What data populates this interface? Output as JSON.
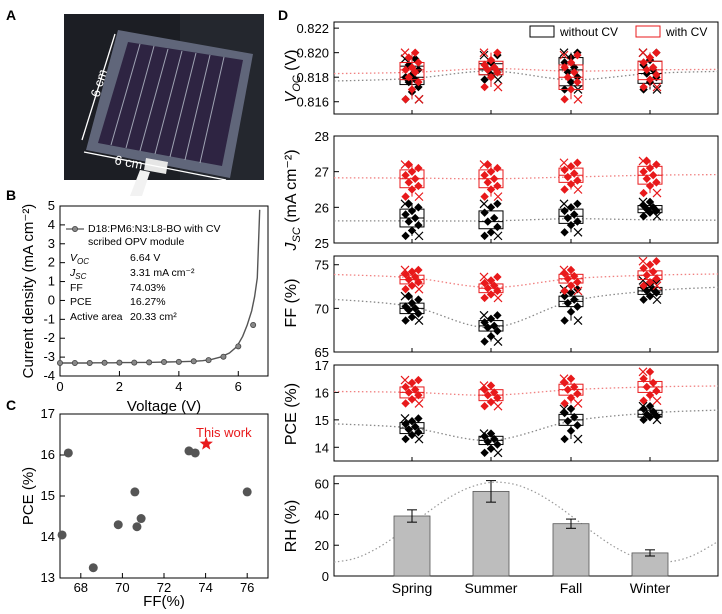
{
  "panels": {
    "A": {
      "label": "A",
      "dims": [
        "6 cm",
        "6 cm"
      ],
      "icon": "solar-module-photo"
    },
    "B": {
      "label": "B",
      "legend": "D18:PM6:N3:L8-BO with CV scribed OPV module",
      "legend_lines": [
        "D18:PM6:N3:L8-BO with CV",
        "scribed OPV module"
      ],
      "params": [
        {
          "label_main": "V",
          "label_sub": "OC",
          "label_rest": "",
          "value": "6.64 V"
        },
        {
          "label_main": "J",
          "label_sub": "SC",
          "label_rest": "",
          "value": "3.31 mA cm⁻²"
        },
        {
          "label_main": "FF",
          "label_sub": "",
          "label_rest": "",
          "value": "74.03%"
        },
        {
          "label_main": "PCE",
          "label_sub": "",
          "label_rest": "",
          "value": "16.27%"
        },
        {
          "label_main": "Active area",
          "label_sub": "",
          "label_rest": "",
          "value": "20.33 cm²"
        }
      ],
      "xlabel": "Voltage (V)",
      "ylabel": "Current density (mA cm⁻²)"
    },
    "C": {
      "label": "C",
      "xlabel": "FF(%)",
      "ylabel": "PCE (%)",
      "highlight_label": "This work"
    },
    "D": {
      "label": "D",
      "legend": [
        {
          "name": "without CV",
          "color": "#000000"
        },
        {
          "name": "with CV",
          "color": "#e8191b"
        }
      ],
      "seasons": [
        "Spring",
        "Summer",
        "Fall",
        "Winter"
      ]
    }
  },
  "chart_data": [
    {
      "id": "B",
      "type": "line",
      "title": "",
      "xlabel": "Voltage (V)",
      "ylabel": "Current density (mA cm⁻²)",
      "xlim": [
        0,
        7
      ],
      "ylim": [
        -4,
        5
      ],
      "xticks": [
        0,
        2,
        4,
        6
      ],
      "yticks": [
        -4,
        -3,
        -2,
        -1,
        0,
        1,
        2,
        3,
        4,
        5
      ],
      "series": [
        {
          "name": "D18:PM6:N3:L8-BO with CV scribed OPV module",
          "x": [
            0.0,
            0.3,
            0.6,
            0.9,
            1.2,
            1.5,
            1.8,
            2.1,
            2.4,
            2.7,
            3.0,
            3.3,
            3.6,
            3.9,
            4.2,
            4.5,
            4.8,
            5.1,
            5.4,
            5.7,
            5.95,
            6.15,
            6.3,
            6.45,
            6.55,
            6.64,
            6.72
          ],
          "y": [
            -3.31,
            -3.31,
            -3.31,
            -3.31,
            -3.3,
            -3.3,
            -3.3,
            -3.29,
            -3.29,
            -3.28,
            -3.28,
            -3.27,
            -3.26,
            -3.25,
            -3.24,
            -3.22,
            -3.19,
            -3.12,
            -3.0,
            -2.78,
            -2.45,
            -1.9,
            -1.3,
            -0.55,
            0.2,
            1.2,
            4.8
          ],
          "markers_x": [
            0.0,
            0.5,
            1.0,
            1.5,
            2.0,
            2.5,
            3.0,
            3.5,
            4.0,
            4.5,
            5.0,
            5.5,
            6.0,
            6.5
          ],
          "markers_y": [
            -3.31,
            -3.31,
            -3.31,
            -3.3,
            -3.29,
            -3.29,
            -3.28,
            -3.26,
            -3.25,
            -3.22,
            -3.16,
            -2.98,
            -2.43,
            -1.3
          ],
          "color": "#555555"
        }
      ]
    },
    {
      "id": "C",
      "type": "scatter",
      "title": "",
      "xlabel": "FF(%)",
      "ylabel": "PCE (%)",
      "xlim": [
        67,
        77
      ],
      "ylim": [
        13,
        17
      ],
      "xticks": [
        68,
        70,
        72,
        74,
        76
      ],
      "yticks": [
        13,
        14,
        15,
        16,
        17
      ],
      "points": [
        {
          "x": 67.1,
          "y": 14.05
        },
        {
          "x": 67.4,
          "y": 16.05
        },
        {
          "x": 68.6,
          "y": 13.25
        },
        {
          "x": 69.8,
          "y": 14.3
        },
        {
          "x": 70.6,
          "y": 15.1
        },
        {
          "x": 70.7,
          "y": 14.25
        },
        {
          "x": 70.9,
          "y": 14.45
        },
        {
          "x": 73.2,
          "y": 16.1
        },
        {
          "x": 73.5,
          "y": 16.05
        },
        {
          "x": 76.0,
          "y": 15.1
        }
      ],
      "highlight": {
        "x": 74.03,
        "y": 16.27,
        "label": "This work",
        "color": "#e8191b"
      }
    },
    {
      "id": "D-VOC",
      "type": "box",
      "ylabel_main": "V",
      "ylabel_sub": "OC",
      "ylabel_rest": " (V)",
      "ylim": [
        0.815,
        0.8225
      ],
      "yticks": [
        0.816,
        0.818,
        0.82,
        0.822
      ],
      "ytick_labels": [
        "0.816",
        "0.818",
        "0.820",
        "0.822"
      ],
      "categories": [
        "Spring",
        "Summer",
        "Fall",
        "Winter"
      ],
      "trend": {
        "without": [
          0.8179,
          0.8185,
          0.8178,
          0.8183
        ],
        "with": [
          0.8184,
          0.8187,
          0.8185,
          0.8186
        ]
      },
      "series": [
        {
          "name": "without CV",
          "color": "#000000",
          "boxes": [
            {
              "q1": 0.8174,
              "q3": 0.8189,
              "median": 0.818,
              "points": [
                0.8162,
                0.8168,
                0.8172,
                0.8176,
                0.8178,
                0.818,
                0.8182,
                0.8186,
                0.819,
                0.8195
              ]
            },
            {
              "q1": 0.8182,
              "q3": 0.8191,
              "median": 0.8186,
              "points": [
                0.8178,
                0.8182,
                0.8184,
                0.8186,
                0.8188,
                0.819,
                0.8192,
                0.8198
              ]
            },
            {
              "q1": 0.8173,
              "q3": 0.8196,
              "median": 0.8186,
              "points": [
                0.817,
                0.8176,
                0.818,
                0.8184,
                0.8188,
                0.8192,
                0.8196,
                0.82
              ]
            },
            {
              "q1": 0.8175,
              "q3": 0.8193,
              "median": 0.8183,
              "points": [
                0.817,
                0.8176,
                0.818,
                0.8183,
                0.8186,
                0.819,
                0.8194,
                0.82
              ]
            }
          ]
        },
        {
          "name": "with CV",
          "color": "#e8191b",
          "boxes": [
            {
              "q1": 0.8178,
              "q3": 0.8192,
              "median": 0.8186,
              "points": [
                0.8162,
                0.817,
                0.8176,
                0.818,
                0.8184,
                0.8186,
                0.8188,
                0.8192,
                0.8196,
                0.82
              ]
            },
            {
              "q1": 0.8182,
              "q3": 0.8193,
              "median": 0.8187,
              "points": [
                0.8172,
                0.818,
                0.8184,
                0.8186,
                0.8188,
                0.819,
                0.8194,
                0.82
              ]
            },
            {
              "q1": 0.817,
              "q3": 0.819,
              "median": 0.818,
              "points": [
                0.8162,
                0.817,
                0.8176,
                0.818,
                0.8184,
                0.8188,
                0.8192,
                0.8198
              ]
            },
            {
              "q1": 0.8178,
              "q3": 0.8193,
              "median": 0.8186,
              "points": [
                0.8172,
                0.8178,
                0.8182,
                0.8186,
                0.8188,
                0.8192,
                0.8196,
                0.82
              ]
            }
          ]
        }
      ]
    },
    {
      "id": "D-JSC",
      "type": "box",
      "ylabel_main": "J",
      "ylabel_sub": "SC",
      "ylabel_rest": " (mA cm⁻²)",
      "ylim": [
        25,
        28
      ],
      "yticks": [
        25,
        26,
        27,
        28
      ],
      "ytick_labels": [
        "25",
        "26",
        "27",
        "28"
      ],
      "categories": [
        "Spring",
        "Summer",
        "Fall",
        "Winter"
      ],
      "trend": {
        "without": [
          25.62,
          25.62,
          25.68,
          25.65
        ],
        "with": [
          26.82,
          26.8,
          26.85,
          26.9
        ]
      },
      "series": [
        {
          "name": "without CV",
          "color": "#000000",
          "boxes": [
            {
              "q1": 25.45,
              "q3": 25.95,
              "median": 25.7,
              "points": [
                25.2,
                25.35,
                25.5,
                25.6,
                25.7,
                25.8,
                25.9,
                26.0,
                26.1
              ]
            },
            {
              "q1": 25.4,
              "q3": 25.9,
              "median": 25.6,
              "points": [
                25.2,
                25.3,
                25.45,
                25.6,
                25.7,
                25.85,
                26.0,
                26.1
              ]
            },
            {
              "q1": 25.55,
              "q3": 25.95,
              "median": 25.75,
              "points": [
                25.3,
                25.5,
                25.6,
                25.7,
                25.8,
                25.9,
                26.0,
                26.1
              ]
            },
            {
              "q1": 25.85,
              "q3": 26.05,
              "median": 25.95,
              "points": [
                25.75,
                25.85,
                25.9,
                25.95,
                26.0,
                26.05,
                26.15
              ]
            }
          ]
        },
        {
          "name": "with CV",
          "color": "#e8191b",
          "boxes": [
            {
              "q1": 26.55,
              "q3": 27.05,
              "median": 26.8,
              "points": [
                26.3,
                26.5,
                26.6,
                26.7,
                26.8,
                26.9,
                27.0,
                27.1,
                27.2
              ]
            },
            {
              "q1": 26.55,
              "q3": 27.05,
              "median": 26.8,
              "points": [
                26.3,
                26.5,
                26.6,
                26.7,
                26.8,
                26.9,
                27.0,
                27.1,
                27.2
              ]
            },
            {
              "q1": 26.7,
              "q3": 27.1,
              "median": 26.9,
              "points": [
                26.5,
                26.65,
                26.75,
                26.85,
                26.95,
                27.05,
                27.15,
                27.25
              ]
            },
            {
              "q1": 26.65,
              "q3": 27.15,
              "median": 26.9,
              "points": [
                26.4,
                26.6,
                26.7,
                26.8,
                26.9,
                27.0,
                27.1,
                27.2,
                27.3
              ]
            }
          ]
        }
      ]
    },
    {
      "id": "D-FF",
      "type": "box",
      "ylabel_main": "FF",
      "ylabel_sub": "",
      "ylabel_rest": " (%)",
      "ylim": [
        65,
        76
      ],
      "yticks": [
        65,
        70,
        75
      ],
      "ytick_labels": [
        "65",
        "70",
        "75"
      ],
      "categories": [
        "Spring",
        "Summer",
        "Fall",
        "Winter"
      ],
      "trend": {
        "without": [
          70.2,
          67.8,
          70.8,
          72.0
        ],
        "with": [
          73.5,
          72.4,
          73.4,
          73.8
        ]
      },
      "series": [
        {
          "name": "without CV",
          "color": "#000000",
          "boxes": [
            {
              "q1": 69.4,
              "q3": 70.6,
              "median": 70.0,
              "points": [
                68.6,
                69.0,
                69.4,
                69.8,
                70.0,
                70.2,
                70.6,
                71.0,
                71.4
              ]
            },
            {
              "q1": 67.4,
              "q3": 68.6,
              "median": 68.0,
              "points": [
                66.2,
                66.8,
                67.4,
                67.8,
                68.0,
                68.4,
                68.8,
                69.2
              ]
            },
            {
              "q1": 70.2,
              "q3": 71.4,
              "median": 70.8,
              "points": [
                68.6,
                69.6,
                70.2,
                70.6,
                71.0,
                71.4,
                71.8,
                72.2
              ]
            },
            {
              "q1": 71.6,
              "q3": 72.4,
              "median": 72.0,
              "points": [
                71.0,
                71.4,
                71.8,
                72.0,
                72.2,
                72.4,
                72.8,
                73.2
              ]
            }
          ]
        },
        {
          "name": "with CV",
          "color": "#e8191b",
          "boxes": [
            {
              "q1": 72.8,
              "q3": 73.8,
              "median": 73.3,
              "points": [
                72.2,
                72.6,
                73.0,
                73.3,
                73.6,
                73.9,
                74.2,
                74.4
              ]
            },
            {
              "q1": 71.8,
              "q3": 72.8,
              "median": 72.3,
              "points": [
                71.2,
                71.6,
                72.0,
                72.3,
                72.6,
                72.9,
                73.2,
                73.6
              ]
            },
            {
              "q1": 72.9,
              "q3": 73.9,
              "median": 73.4,
              "points": [
                72.0,
                72.6,
                73.0,
                73.4,
                73.7,
                74.0,
                74.4
              ]
            },
            {
              "q1": 73.3,
              "q3": 74.3,
              "median": 73.8,
              "points": [
                72.6,
                73.0,
                73.4,
                73.8,
                74.2,
                74.6,
                75.0,
                75.4
              ]
            }
          ]
        }
      ]
    },
    {
      "id": "D-PCE",
      "type": "box",
      "ylabel_main": "PCE",
      "ylabel_sub": "",
      "ylabel_rest": " (%)",
      "ylim": [
        13.5,
        17
      ],
      "yticks": [
        14,
        15,
        16,
        17
      ],
      "ytick_labels": [
        "14",
        "15",
        "16",
        "17"
      ],
      "categories": [
        "Spring",
        "Summer",
        "Fall",
        "Winter"
      ],
      "trend": {
        "without": [
          14.7,
          14.25,
          14.95,
          15.25
        ],
        "with": [
          16.0,
          15.9,
          16.1,
          16.2
        ]
      },
      "series": [
        {
          "name": "without CV",
          "color": "#000000",
          "boxes": [
            {
              "q1": 14.5,
              "q3": 14.9,
              "median": 14.7,
              "points": [
                14.3,
                14.45,
                14.55,
                14.65,
                14.75,
                14.85,
                14.95,
                15.05
              ]
            },
            {
              "q1": 14.1,
              "q3": 14.4,
              "median": 14.25,
              "points": [
                13.8,
                13.95,
                14.1,
                14.2,
                14.3,
                14.4,
                14.5
              ]
            },
            {
              "q1": 14.8,
              "q3": 15.2,
              "median": 15.0,
              "points": [
                14.3,
                14.6,
                14.8,
                14.95,
                15.1,
                15.25,
                15.4
              ]
            },
            {
              "q1": 15.1,
              "q3": 15.35,
              "median": 15.2,
              "points": [
                15.0,
                15.1,
                15.15,
                15.2,
                15.3,
                15.4,
                15.5
              ]
            }
          ]
        },
        {
          "name": "with CV",
          "color": "#e8191b",
          "boxes": [
            {
              "q1": 15.8,
              "q3": 16.2,
              "median": 16.0,
              "points": [
                15.6,
                15.75,
                15.9,
                16.0,
                16.1,
                16.2,
                16.35,
                16.45
              ]
            },
            {
              "q1": 15.7,
              "q3": 16.1,
              "median": 15.9,
              "points": [
                15.5,
                15.65,
                15.8,
                15.9,
                16.0,
                16.1,
                16.25
              ]
            },
            {
              "q1": 15.9,
              "q3": 16.3,
              "median": 16.1,
              "points": [
                15.6,
                15.8,
                15.95,
                16.1,
                16.2,
                16.35,
                16.5
              ]
            },
            {
              "q1": 16.0,
              "q3": 16.4,
              "median": 16.2,
              "points": [
                15.7,
                15.9,
                16.05,
                16.2,
                16.35,
                16.5,
                16.75
              ]
            }
          ]
        }
      ]
    },
    {
      "id": "D-RH",
      "type": "bar",
      "ylabel": "RH (%)",
      "ylim": [
        0,
        65
      ],
      "yticks": [
        0,
        20,
        40,
        60
      ],
      "categories": [
        "Spring",
        "Summer",
        "Fall",
        "Winter"
      ],
      "values": [
        39,
        55,
        34,
        15
      ],
      "errors": [
        4,
        7,
        3,
        2
      ],
      "bar_color": "#bdbdbd"
    }
  ]
}
